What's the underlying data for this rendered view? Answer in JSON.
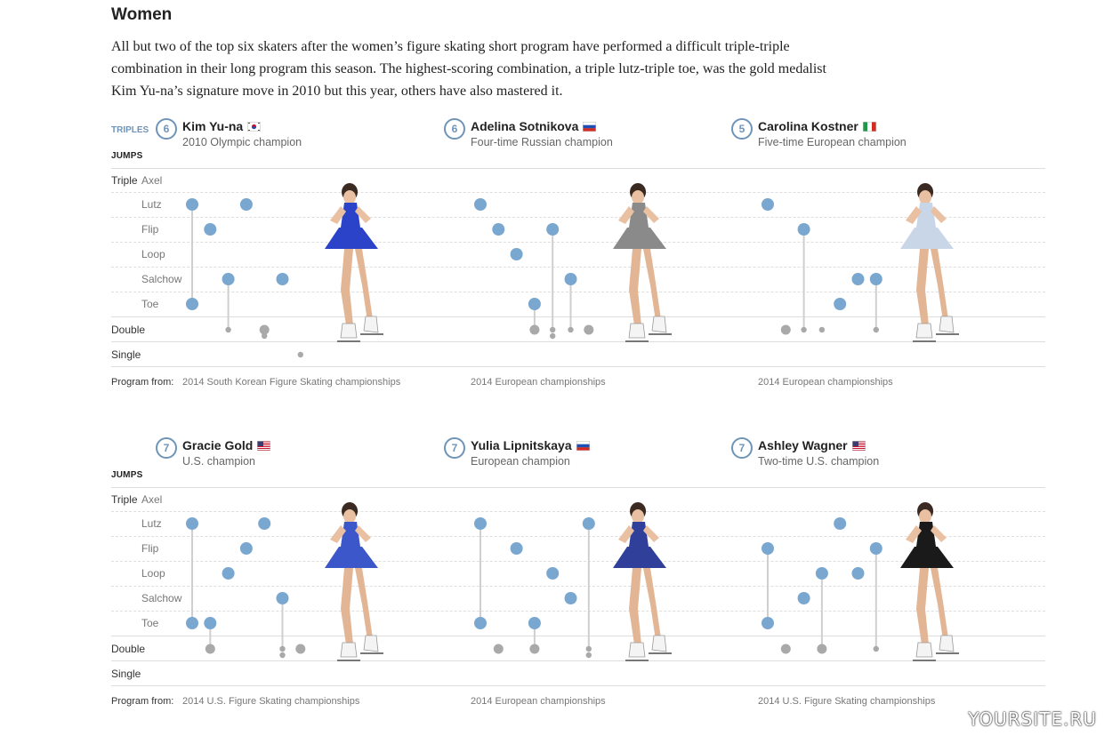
{
  "title": "Women",
  "intro": "All but two of the top six skaters after the women’s figure skating short program have performed a difficult triple-triple combination in their long program this season. The highest-scoring combination, a triple lutz-triple toe, was the gold medalist Kim Yu-na’s signature move in 2010 but this year, others have also mastered it.",
  "labels": {
    "triples": "TRIPLES",
    "jumps": "JUMPS",
    "triple": "Triple",
    "double": "Double",
    "single": "Single",
    "program_from": "Program from:",
    "rows": [
      "Axel",
      "Lutz",
      "Flip",
      "Loop",
      "Salchow",
      "Toe"
    ]
  },
  "colors": {
    "triple": "#7aa7cf",
    "double": "#a9a9a9",
    "stem": "#cfcfcf",
    "badge": "#6e95b8"
  },
  "watermark": "YOURSITE.RU",
  "chart_data": [
    {
      "type": "scatter",
      "name": "Kim Yu-na",
      "flag": "KR",
      "triples_count": "6",
      "subtitle": "2010 Olympic champion",
      "program": "2014 South Korean Figure Skating championships",
      "costume": "#2b43c9",
      "points": [
        {
          "seq": 1,
          "jump": "Lutz",
          "level": "triple"
        },
        {
          "seq": 1,
          "jump": "Toe",
          "level": "triple"
        },
        {
          "seq": 2,
          "jump": "Flip",
          "level": "triple"
        },
        {
          "seq": 3,
          "jump": "Salchow",
          "level": "triple"
        },
        {
          "seq": 3,
          "jump": "Double",
          "level": "double_small"
        },
        {
          "seq": 4,
          "jump": "Lutz",
          "level": "triple"
        },
        {
          "seq": 5,
          "jump": "Double",
          "level": "double"
        },
        {
          "seq": 5,
          "jump": "Double",
          "level": "double_small_below"
        },
        {
          "seq": 6,
          "jump": "Salchow",
          "level": "triple"
        },
        {
          "seq": 7,
          "jump": "Single",
          "level": "double_small"
        }
      ],
      "stems": [
        {
          "seq": 1,
          "from": "Lutz",
          "to": "Toe"
        },
        {
          "seq": 3,
          "from": "Salchow",
          "to": "Double"
        }
      ]
    },
    {
      "type": "scatter",
      "name": "Adelina Sotnikova",
      "flag": "RU",
      "triples_count": "6",
      "subtitle": "Four-time Russian champion",
      "program": "2014 European championships",
      "costume": "#8a8a8a",
      "points": [
        {
          "seq": 1,
          "jump": "Lutz",
          "level": "triple"
        },
        {
          "seq": 2,
          "jump": "Flip",
          "level": "triple"
        },
        {
          "seq": 3,
          "jump": "Loop",
          "level": "triple"
        },
        {
          "seq": 4,
          "jump": "Toe",
          "level": "triple"
        },
        {
          "seq": 4,
          "jump": "Double",
          "level": "double"
        },
        {
          "seq": 5,
          "jump": "Flip",
          "level": "triple"
        },
        {
          "seq": 5,
          "jump": "Double",
          "level": "double_small"
        },
        {
          "seq": 5,
          "jump": "Double",
          "level": "double_small_below"
        },
        {
          "seq": 6,
          "jump": "Salchow",
          "level": "triple"
        },
        {
          "seq": 6,
          "jump": "Double",
          "level": "double_small"
        },
        {
          "seq": 7,
          "jump": "Double",
          "level": "double"
        }
      ],
      "stems": [
        {
          "seq": 4,
          "from": "Toe",
          "to": "Double"
        },
        {
          "seq": 5,
          "from": "Flip",
          "to": "Double"
        },
        {
          "seq": 6,
          "from": "Salchow",
          "to": "Double"
        }
      ]
    },
    {
      "type": "scatter",
      "name": "Carolina Kostner",
      "flag": "IT",
      "triples_count": "5",
      "subtitle": "Five-time European champion",
      "program": "2014 European championships",
      "costume": "#c9d6e8",
      "points": [
        {
          "seq": 1,
          "jump": "Lutz",
          "level": "triple"
        },
        {
          "seq": 2,
          "jump": "Double",
          "level": "double"
        },
        {
          "seq": 3,
          "jump": "Flip",
          "level": "triple"
        },
        {
          "seq": 3,
          "jump": "Double",
          "level": "double_small"
        },
        {
          "seq": 4,
          "jump": "Double",
          "level": "double_small"
        },
        {
          "seq": 5,
          "jump": "Toe",
          "level": "triple"
        },
        {
          "seq": 6,
          "jump": "Salchow",
          "level": "triple"
        },
        {
          "seq": 7,
          "jump": "Salchow",
          "level": "triple"
        },
        {
          "seq": 7,
          "jump": "Double",
          "level": "double_small"
        }
      ],
      "stems": [
        {
          "seq": 3,
          "from": "Flip",
          "to": "Double"
        },
        {
          "seq": 7,
          "from": "Salchow",
          "to": "Double"
        }
      ]
    },
    {
      "type": "scatter",
      "name": "Gracie Gold",
      "flag": "US",
      "triples_count": "7",
      "subtitle": "U.S. champion",
      "program": "2014 U.S. Figure Skating championships",
      "costume": "#3b57c9",
      "points": [
        {
          "seq": 1,
          "jump": "Lutz",
          "level": "triple"
        },
        {
          "seq": 1,
          "jump": "Toe",
          "level": "triple"
        },
        {
          "seq": 2,
          "jump": "Toe",
          "level": "triple"
        },
        {
          "seq": 2,
          "jump": "Double",
          "level": "double"
        },
        {
          "seq": 3,
          "jump": "Loop",
          "level": "triple"
        },
        {
          "seq": 4,
          "jump": "Flip",
          "level": "triple"
        },
        {
          "seq": 5,
          "jump": "Lutz",
          "level": "triple"
        },
        {
          "seq": 6,
          "jump": "Salchow",
          "level": "triple"
        },
        {
          "seq": 6,
          "jump": "Double",
          "level": "double_small"
        },
        {
          "seq": 6,
          "jump": "Double",
          "level": "double_small_below"
        },
        {
          "seq": 7,
          "jump": "Double",
          "level": "double"
        }
      ],
      "stems": [
        {
          "seq": 1,
          "from": "Lutz",
          "to": "Toe"
        },
        {
          "seq": 2,
          "from": "Toe",
          "to": "Double"
        },
        {
          "seq": 6,
          "from": "Salchow",
          "to": "Double"
        }
      ]
    },
    {
      "type": "scatter",
      "name": "Yulia Lipnitskaya",
      "flag": "RU",
      "triples_count": "7",
      "subtitle": "European champion",
      "program": "2014 European championships",
      "costume": "#2f3f9a",
      "points": [
        {
          "seq": 1,
          "jump": "Lutz",
          "level": "triple"
        },
        {
          "seq": 1,
          "jump": "Toe",
          "level": "triple"
        },
        {
          "seq": 2,
          "jump": "Double",
          "level": "double"
        },
        {
          "seq": 3,
          "jump": "Flip",
          "level": "triple"
        },
        {
          "seq": 4,
          "jump": "Toe",
          "level": "triple"
        },
        {
          "seq": 4,
          "jump": "Double",
          "level": "double"
        },
        {
          "seq": 5,
          "jump": "Loop",
          "level": "triple"
        },
        {
          "seq": 6,
          "jump": "Salchow",
          "level": "triple"
        },
        {
          "seq": 7,
          "jump": "Lutz",
          "level": "triple"
        },
        {
          "seq": 7,
          "jump": "Double",
          "level": "double_small"
        },
        {
          "seq": 7,
          "jump": "Double",
          "level": "double_small_below"
        }
      ],
      "stems": [
        {
          "seq": 1,
          "from": "Lutz",
          "to": "Toe"
        },
        {
          "seq": 4,
          "from": "Toe",
          "to": "Double"
        },
        {
          "seq": 7,
          "from": "Lutz",
          "to": "Double"
        }
      ]
    },
    {
      "type": "scatter",
      "name": "Ashley Wagner",
      "flag": "US",
      "triples_count": "7",
      "subtitle": "Two-time U.S. champion",
      "program": "2014 U.S. Figure Skating championships",
      "costume": "#1a1a1a",
      "points": [
        {
          "seq": 1,
          "jump": "Flip",
          "level": "triple"
        },
        {
          "seq": 1,
          "jump": "Toe",
          "level": "triple"
        },
        {
          "seq": 2,
          "jump": "Double",
          "level": "double"
        },
        {
          "seq": 3,
          "jump": "Salchow",
          "level": "triple"
        },
        {
          "seq": 4,
          "jump": "Loop",
          "level": "triple"
        },
        {
          "seq": 4,
          "jump": "Double",
          "level": "double"
        },
        {
          "seq": 5,
          "jump": "Lutz",
          "level": "triple"
        },
        {
          "seq": 6,
          "jump": "Loop",
          "level": "triple"
        },
        {
          "seq": 7,
          "jump": "Flip",
          "level": "triple"
        },
        {
          "seq": 7,
          "jump": "Double",
          "level": "double_small"
        }
      ],
      "stems": [
        {
          "seq": 1,
          "from": "Flip",
          "to": "Toe"
        },
        {
          "seq": 4,
          "from": "Loop",
          "to": "Double"
        },
        {
          "seq": 7,
          "from": "Flip",
          "to": "Double"
        }
      ]
    }
  ]
}
